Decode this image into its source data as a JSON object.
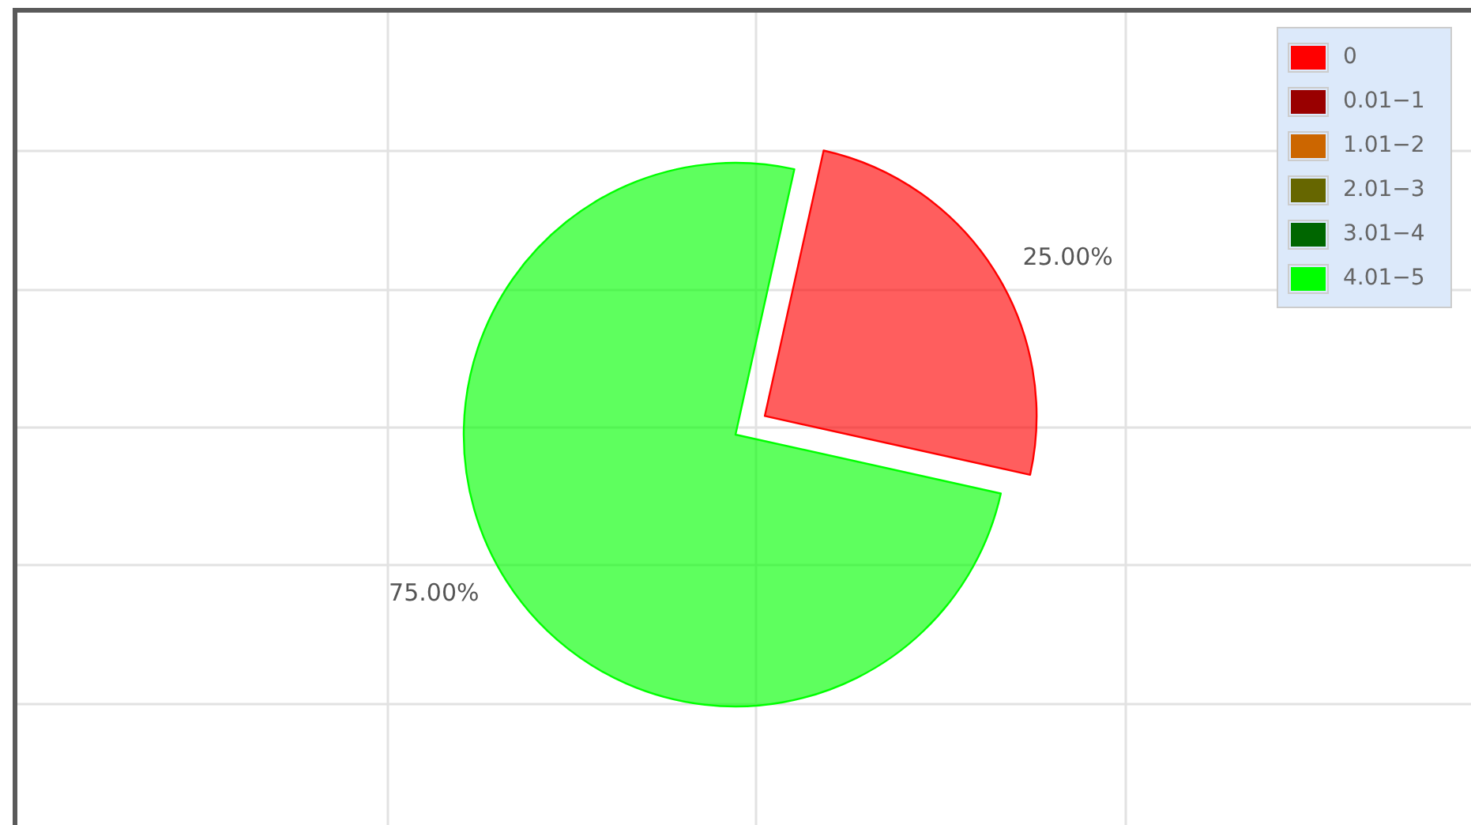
{
  "chart_data": {
    "type": "pie",
    "categories": [
      "0",
      "0.01−1",
      "1.01−2",
      "2.01−3",
      "3.01−4",
      "4.01−5"
    ],
    "values": [
      25,
      0,
      0,
      0,
      0,
      75
    ],
    "colors": [
      "#ff0000",
      "#990000",
      "#cc6600",
      "#666600",
      "#006600",
      "#00ff00"
    ],
    "value_labels": [
      "25.00%",
      null,
      null,
      null,
      null,
      "75.00%"
    ],
    "legend": "top right",
    "grid": true
  }
}
